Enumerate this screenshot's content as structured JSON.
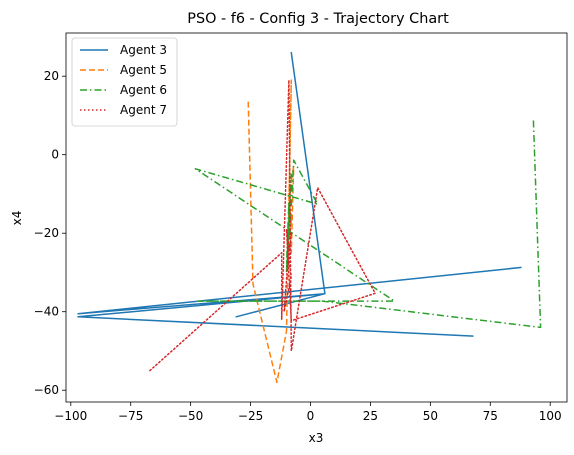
{
  "chart_data": {
    "type": "line",
    "title": "PSO - f6 - Config 3 - Trajectory Chart",
    "xlabel": "x3",
    "ylabel": "x4",
    "xlim": [
      -102,
      107
    ],
    "ylim": [
      -63,
      31
    ],
    "xticks": [
      -100,
      -75,
      -50,
      -25,
      0,
      25,
      50,
      75,
      100
    ],
    "yticks": [
      -60,
      -40,
      -20,
      0,
      20
    ],
    "grid": false,
    "legend_position": "top-left",
    "series": [
      {
        "name": "Agent 3",
        "color": "#1f77b4",
        "dash": "solid",
        "points": [
          [
            88,
            -28.7
          ],
          [
            -97,
            -40.5
          ],
          [
            6,
            -35.4
          ],
          [
            -8,
            26
          ],
          [
            6,
            -35.4
          ],
          [
            -31,
            -41.3
          ],
          [
            6,
            -35.4
          ],
          [
            -97,
            -41.3
          ],
          [
            68,
            -46.2
          ]
        ]
      },
      {
        "name": "Agent 5",
        "color": "#ff7f0e",
        "dash": "dashed",
        "points": [
          [
            -26,
            13.5
          ],
          [
            -24,
            -33
          ],
          [
            -14,
            -58
          ],
          [
            -10,
            -45
          ],
          [
            -8,
            19
          ],
          [
            -9,
            -12
          ],
          [
            -8,
            -25
          ],
          [
            -7,
            -3
          ],
          [
            -9,
            -10
          ],
          [
            -8,
            -18
          ]
        ]
      },
      {
        "name": "Agent 6",
        "color": "#2ca02c",
        "dash": "dashdot",
        "points": [
          [
            93,
            8.7
          ],
          [
            96,
            -44
          ],
          [
            5,
            -37.3
          ],
          [
            -47,
            -37.3
          ],
          [
            35,
            -37.3
          ],
          [
            -48,
            -3.6
          ],
          [
            3,
            -12.6
          ],
          [
            -7,
            -1.4
          ],
          [
            -9,
            -25
          ],
          [
            -10,
            -28
          ],
          [
            -9,
            -12
          ],
          [
            -9,
            -22
          ],
          [
            -8,
            -5
          ],
          [
            -10,
            -30
          ],
          [
            -9,
            -15
          ]
        ]
      },
      {
        "name": "Agent 7",
        "color": "#d62728",
        "dash": "dotted",
        "points": [
          [
            -67,
            -55
          ],
          [
            -12,
            -25
          ],
          [
            -12,
            -42
          ],
          [
            -9,
            19
          ],
          [
            -8,
            -50
          ],
          [
            3,
            -8.4
          ],
          [
            27,
            -35.3
          ],
          [
            -8,
            -42.3
          ],
          [
            -10,
            -19
          ],
          [
            -9,
            -23.7
          ],
          [
            -10,
            -32
          ],
          [
            -11,
            -40
          ],
          [
            -8,
            -31
          ],
          [
            -9,
            -27
          ],
          [
            -8,
            -20
          ]
        ]
      }
    ]
  }
}
